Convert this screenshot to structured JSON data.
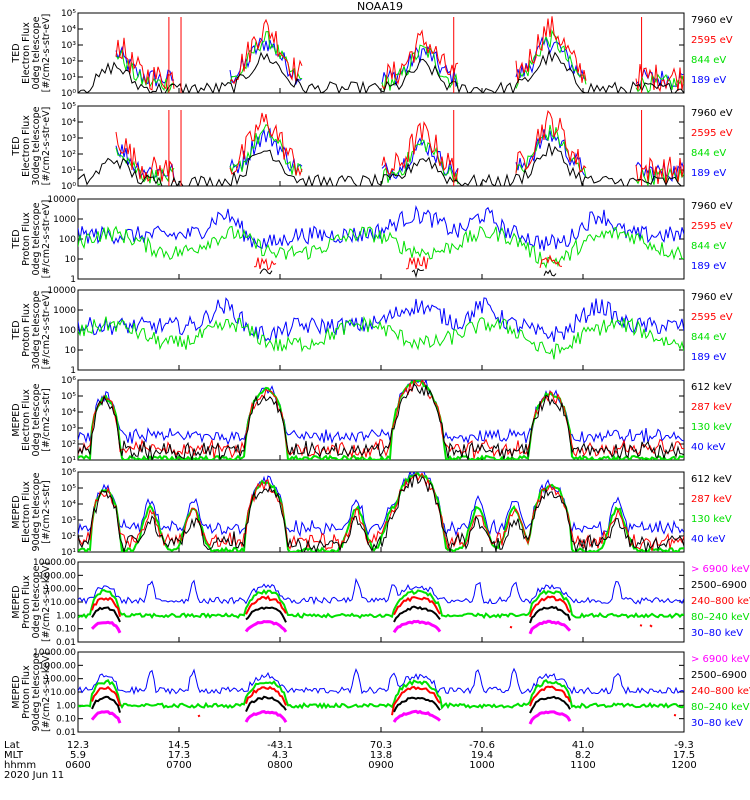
{
  "title": "NOAA19",
  "date_label": "2020 Jun 11",
  "colors": {
    "black": "#000000",
    "red": "#ff0000",
    "green": "#00e000",
    "blue": "#0000ff",
    "magenta": "#ff00ff"
  },
  "chart_data": [
    {
      "type": "line",
      "ylabel": [
        "TED",
        "Electron Flux",
        "0deg telescope",
        "[#/cm2-s-str-eV]"
      ],
      "log": true,
      "ylim": [
        1,
        100000
      ],
      "ytick_labels": [
        "10⁰",
        "10¹",
        "10²",
        "10³",
        "10⁴",
        "10⁵"
      ],
      "legend": [
        {
          "name": "7960 eV",
          "color": "black"
        },
        {
          "name": "2595 eV",
          "color": "red"
        },
        {
          "name": "844 eV",
          "color": "green"
        },
        {
          "name": "189 eV",
          "color": "blue"
        }
      ],
      "peaks": [
        {
          "x": 0.31,
          "level": 2.3
        },
        {
          "x": 0.78,
          "level": 2.4
        }
      ]
    },
    {
      "type": "line",
      "ylabel": [
        "TED",
        "Electron Flux",
        "30deg telescope",
        "[#/cm2-s-str-eV]"
      ],
      "log": true,
      "ylim": [
        1,
        100000
      ],
      "ytick_labels": [
        "10⁰",
        "10¹",
        "10²",
        "10³",
        "10⁴",
        "10⁵"
      ],
      "legend": [
        {
          "name": "7960 eV",
          "color": "black"
        },
        {
          "name": "2595 eV",
          "color": "red"
        },
        {
          "name": "844 eV",
          "color": "green"
        },
        {
          "name": "189 eV",
          "color": "blue"
        }
      ],
      "peaks": [
        {
          "x": 0.31,
          "level": 2.4
        },
        {
          "x": 0.78,
          "level": 2.5
        }
      ]
    },
    {
      "type": "line",
      "ylabel": [
        "TED",
        "Proton Flux",
        "0deg telescope",
        "[#/cm2-s-str-eV]"
      ],
      "log": true,
      "ylim": [
        1,
        10000
      ],
      "ytick_labels": [
        "1",
        "10",
        "100",
        "1000",
        "10000"
      ],
      "legend": [
        {
          "name": "7960 eV",
          "color": "black"
        },
        {
          "name": "2595 eV",
          "color": "red"
        },
        {
          "name": "844 eV",
          "color": "green"
        },
        {
          "name": "189 eV",
          "color": "blue"
        }
      ]
    },
    {
      "type": "line",
      "ylabel": [
        "TED",
        "Proton Flux",
        "30deg telescope",
        "[#/cm2-s-str-eV]"
      ],
      "log": true,
      "ylim": [
        1,
        10000
      ],
      "ytick_labels": [
        "1",
        "10",
        "100",
        "1000",
        "10000"
      ],
      "legend": [
        {
          "name": "7960 eV",
          "color": "black"
        },
        {
          "name": "2595 eV",
          "color": "red"
        },
        {
          "name": "844 eV",
          "color": "green"
        },
        {
          "name": "189 eV",
          "color": "blue"
        }
      ]
    },
    {
      "type": "line",
      "ylabel": [
        "MEPED",
        "Electron Flux",
        "0deg telescope",
        "[#/cm2-s-str]"
      ],
      "log": true,
      "ylim": [
        10,
        1000000
      ],
      "ytick_labels": [
        "10¹",
        "10²",
        "10³",
        "10⁴",
        "10⁵",
        "10⁶"
      ],
      "legend": [
        {
          "name": "612 keV",
          "color": "black"
        },
        {
          "name": "287 keV",
          "color": "red"
        },
        {
          "name": "130 keV",
          "color": "green"
        },
        {
          "name": "40 keV",
          "color": "blue"
        }
      ]
    },
    {
      "type": "line",
      "ylabel": [
        "MEPED",
        "Electron Flux",
        "90deg telescope",
        "[#/cm2-s-str]"
      ],
      "log": true,
      "ylim": [
        10,
        1000000
      ],
      "ytick_labels": [
        "10¹",
        "10²",
        "10³",
        "10⁴",
        "10⁵",
        "10⁶"
      ],
      "legend": [
        {
          "name": "612 keV",
          "color": "black"
        },
        {
          "name": "287 keV",
          "color": "red"
        },
        {
          "name": "130 keV",
          "color": "green"
        },
        {
          "name": "40 keV",
          "color": "blue"
        }
      ]
    },
    {
      "type": "line",
      "ylabel": [
        "MEPED",
        "Proton Flux",
        "0deg telescope",
        "[#/cm2-s-sr-keV]"
      ],
      "log": true,
      "ylim": [
        0.01,
        10000
      ],
      "ytick_labels": [
        "0.01",
        "0.10",
        "1.00",
        "10.00",
        "100.00",
        "1000.00",
        "10000.00"
      ],
      "legend": [
        {
          "name": "> 6900 keV",
          "color": "magenta"
        },
        {
          "name": "2500–6900",
          "color": "black"
        },
        {
          "name": "240–800 keV",
          "color": "red"
        },
        {
          "name": "80–240 keV",
          "color": "green"
        },
        {
          "name": "30–80 keV",
          "color": "blue"
        }
      ]
    },
    {
      "type": "line",
      "ylabel": [
        "MEPED",
        "Proton Flux",
        "90deg telescope",
        "[#/cm2-s-sr-keV]"
      ],
      "log": true,
      "ylim": [
        0.01,
        10000
      ],
      "ytick_labels": [
        "0.01",
        "0.10",
        "1.00",
        "10.00",
        "100.00",
        "1000.00",
        "10000.00"
      ],
      "legend": [
        {
          "name": "> 6900 keV",
          "color": "magenta"
        },
        {
          "name": "2500–6900",
          "color": "black"
        },
        {
          "name": "240–800 keV",
          "color": "red"
        },
        {
          "name": "80–240 keV",
          "color": "green"
        },
        {
          "name": "30–80 keV",
          "color": "blue"
        }
      ]
    }
  ],
  "x_axis": {
    "row_labels": [
      "Lat",
      "MLT",
      "hhmm",
      "2020 Jun 11"
    ],
    "ticks": [
      {
        "lat": "12.3",
        "mlt": "5.9",
        "time": "0600"
      },
      {
        "lat": "14.5",
        "mlt": "17.3",
        "time": "0700"
      },
      {
        "lat": "-43.1",
        "mlt": "4.3",
        "time": "0800"
      },
      {
        "lat": "70.3",
        "mlt": "13.8",
        "time": "0900"
      },
      {
        "lat": "-70.6",
        "mlt": "19.4",
        "time": "1000"
      },
      {
        "lat": "41.0",
        "mlt": "8.2",
        "time": "1100"
      },
      {
        "lat": "-9.3",
        "mlt": "17.5",
        "time": "1200"
      }
    ]
  }
}
